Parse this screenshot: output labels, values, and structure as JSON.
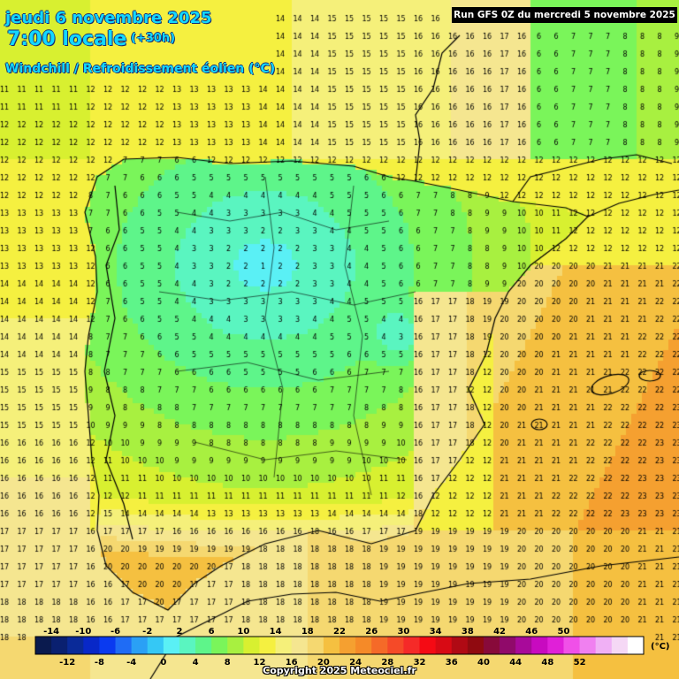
{
  "header": {
    "date": "jeudi 6 novembre 2025",
    "local_time": "7:00 locale",
    "lead": "(+30h)",
    "parameter": "Windchill / Refroidissement éolien (°C)",
    "run": "Run GFS 0Z du mercredi 5 novembre 2025"
  },
  "legend": {
    "unit": "(°C)",
    "top_labels": [
      "-14",
      "-10",
      "-6",
      "-2",
      "2",
      "6",
      "10",
      "14",
      "18",
      "22",
      "26",
      "30",
      "34",
      "38",
      "42",
      "46",
      "50"
    ],
    "bottom_labels": [
      "-12",
      "-8",
      "-4",
      "0",
      "4",
      "8",
      "12",
      "16",
      "20",
      "24",
      "28",
      "32",
      "36",
      "40",
      "44",
      "48",
      "52"
    ],
    "colors": [
      "#0a1a4e",
      "#0a2070",
      "#0a2a98",
      "#0828c8",
      "#0a3af0",
      "#1f6cf5",
      "#2aa0f5",
      "#35c8f5",
      "#5af0f5",
      "#5af5c0",
      "#5ef58a",
      "#7af55a",
      "#a8f040",
      "#d8f030",
      "#f5f040",
      "#f5f07a",
      "#f5e690",
      "#f5d870",
      "#f5c040",
      "#f5a030",
      "#f58a28",
      "#f56a28",
      "#f54a28",
      "#f52a28",
      "#f50a14",
      "#d80a14",
      "#b00a14",
      "#900a10",
      "#880a3a",
      "#900a6a",
      "#a80a9a",
      "#c80ac0",
      "#e020d8",
      "#f050e8",
      "#f080f0",
      "#f0b0f5",
      "#f5d8f5",
      "#ffffff"
    ]
  },
  "copyright": "Copyright 2025 Meteociel.fr"
}
